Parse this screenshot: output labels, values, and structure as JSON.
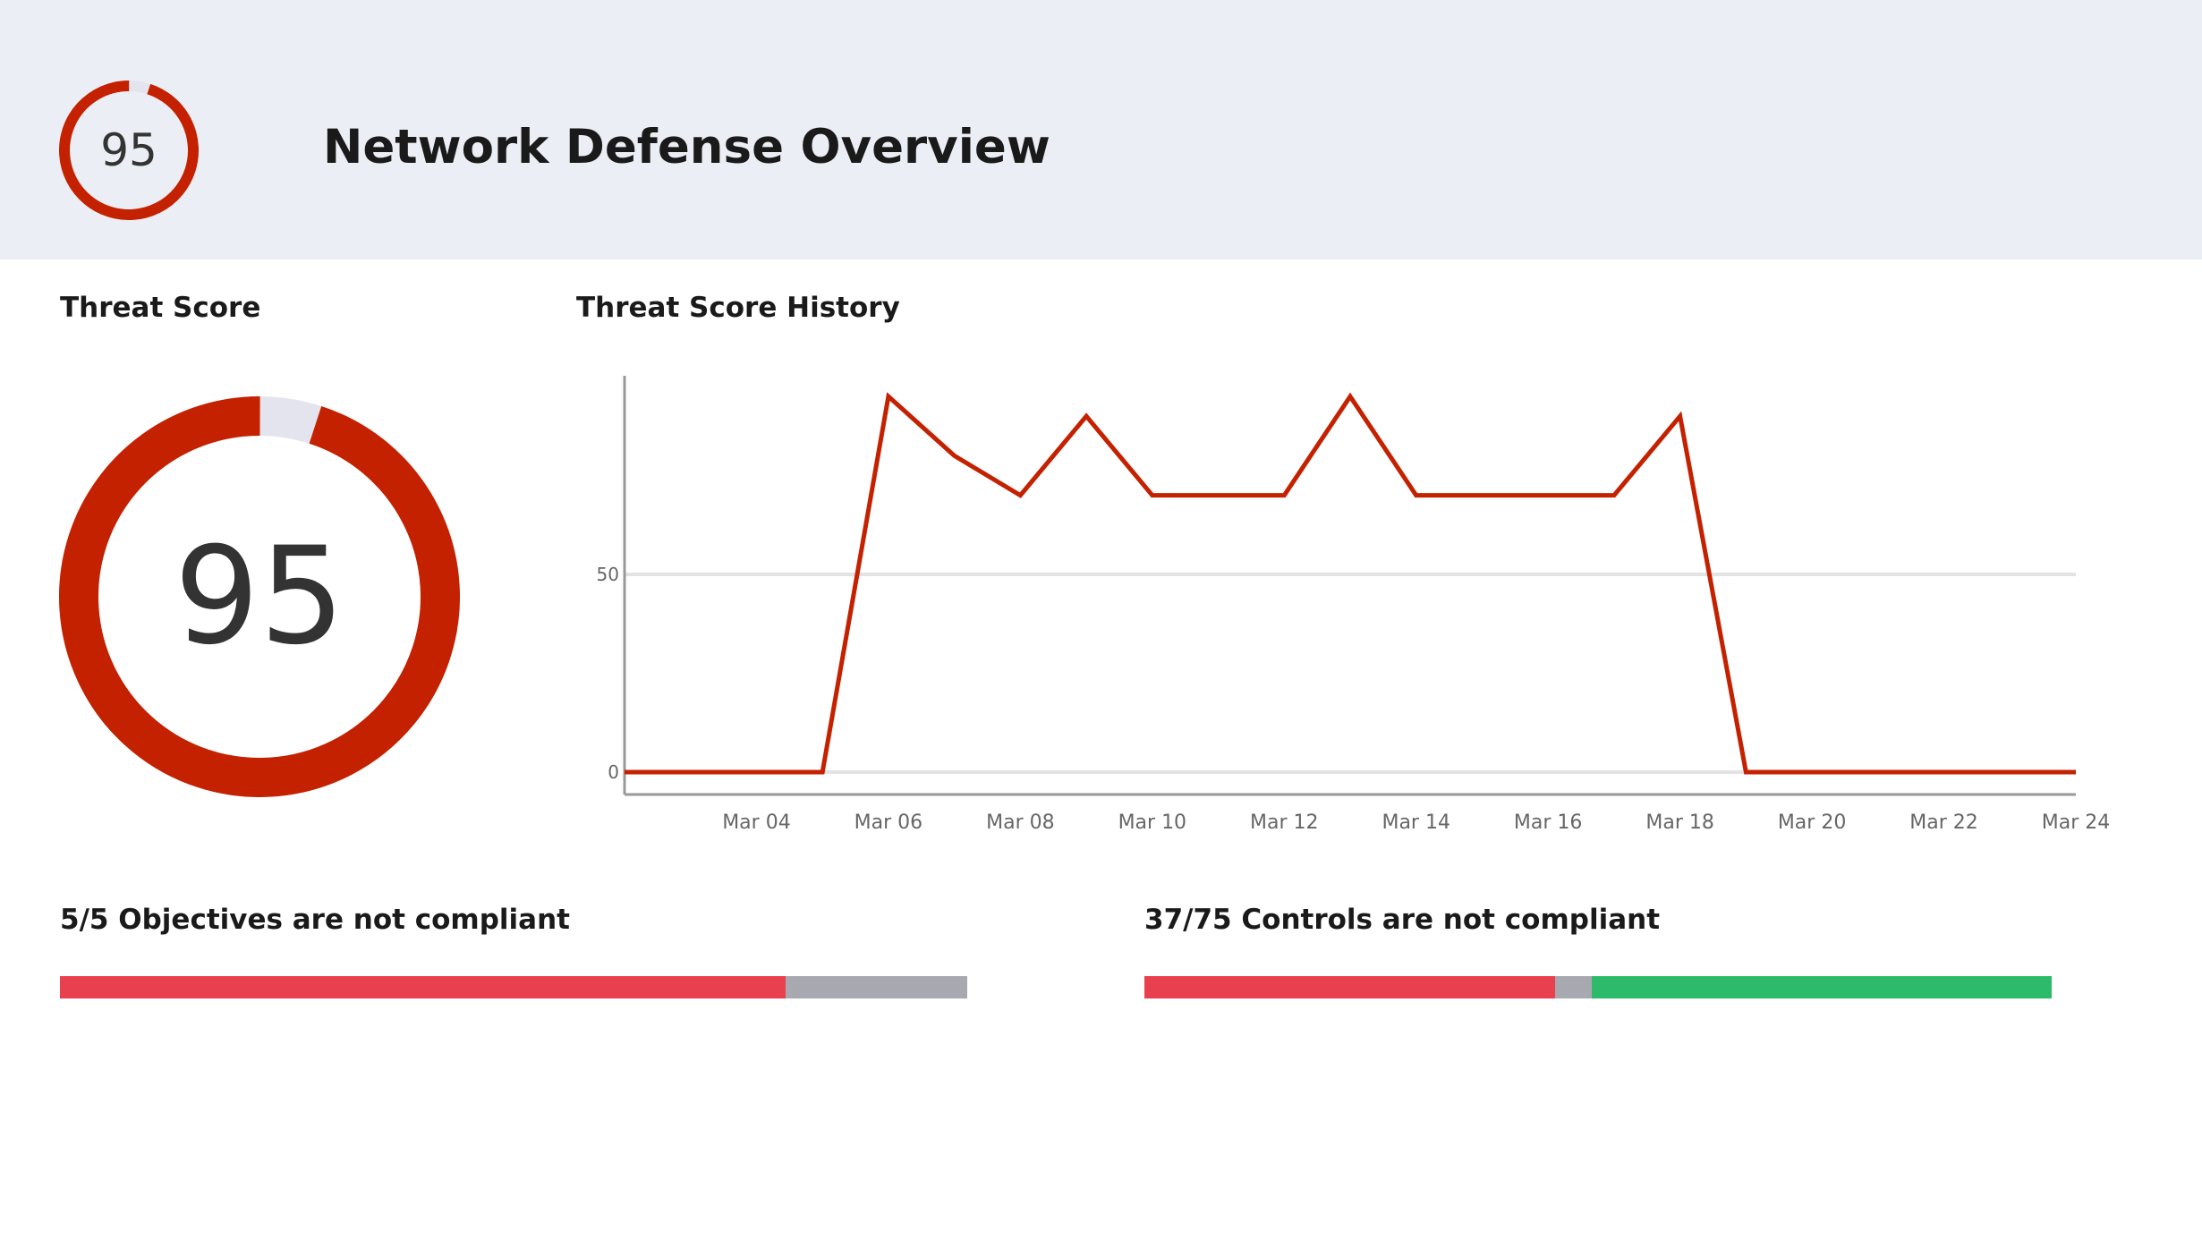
{
  "header": {
    "title": "Network Defense Overview",
    "score": "95",
    "score_value": 95
  },
  "threat_score": {
    "label": "Threat Score",
    "value": "95",
    "score_value": 95
  },
  "colors": {
    "ring": "#c42100",
    "ring_track": "#e4e4ee",
    "line": "#c42100",
    "noncompliant": "#e8404f",
    "unknown": "#a8a8b0",
    "compliant": "#2dba6a"
  },
  "chart_data": {
    "type": "line",
    "title": "Threat Score History",
    "xlabel": "",
    "ylabel": "",
    "x": [
      "Mar 02",
      "Mar 03",
      "Mar 04",
      "Mar 05",
      "Mar 06",
      "Mar 07",
      "Mar 08",
      "Mar 09",
      "Mar 10",
      "Mar 11",
      "Mar 12",
      "Mar 13",
      "Mar 14",
      "Mar 15",
      "Mar 16",
      "Mar 17",
      "Mar 18",
      "Mar 19",
      "Mar 20",
      "Mar 21",
      "Mar 22",
      "Mar 23",
      "Mar 24"
    ],
    "values": [
      0,
      0,
      0,
      0,
      95,
      80,
      70,
      90,
      70,
      70,
      70,
      95,
      70,
      70,
      70,
      70,
      90,
      0,
      0,
      0,
      0,
      0,
      0
    ],
    "x_ticks": [
      "Mar 04",
      "Mar 06",
      "Mar 08",
      "Mar 10",
      "Mar 12",
      "Mar 14",
      "Mar 16",
      "Mar 18",
      "Mar 20",
      "Mar 22",
      "Mar 24"
    ],
    "y_ticks": [
      "0",
      "50"
    ],
    "ylim": [
      0,
      100
    ],
    "grid": true,
    "legend": "none"
  },
  "objectives": {
    "label": "5/5 Objectives are not compliant",
    "segments": [
      {
        "status": "noncompliant",
        "fraction": 0.8
      },
      {
        "status": "unknown",
        "fraction": 0.2
      }
    ]
  },
  "controls": {
    "label": "37/75 Controls are not compliant",
    "segments": [
      {
        "status": "noncompliant",
        "fraction": 0.453
      },
      {
        "status": "unknown",
        "fraction": 0.04
      },
      {
        "status": "compliant",
        "fraction": 0.507
      }
    ]
  }
}
